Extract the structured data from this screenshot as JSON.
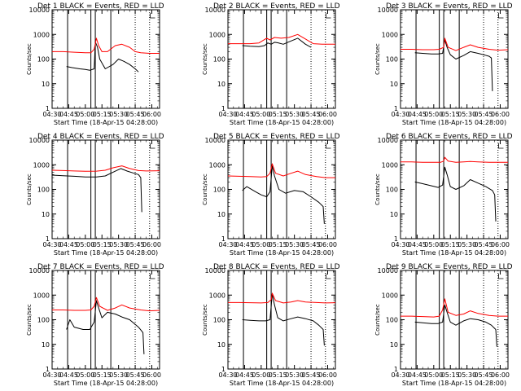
{
  "legend_colors": {
    "events": "#000000",
    "lld": "#ff0000",
    "marker": "#000000"
  },
  "y_ticks": [
    "1",
    "10",
    "100",
    "1000",
    "10000"
  ],
  "x_ticks": [
    "04:30",
    "04:45",
    "05:00",
    "05:15",
    "05:30",
    "05:45",
    "06:00"
  ],
  "chart_data": [
    {
      "type": "line",
      "title": "Det 1 BLACK = Events, RED = LLD",
      "xlabel": "Start Time (18-Apr-15 04:28:00)",
      "ylabel": "Counts/sec",
      "ylim": [
        1,
        10000
      ],
      "xlim": [
        "04:30",
        "06:07"
      ],
      "log_y": true,
      "solid_markers": [
        "04:44",
        "05:05",
        "05:09",
        "05:23"
      ],
      "dotted_markers": [
        "05:45",
        "05:58"
      ],
      "series": [
        {
          "color": "#000000",
          "x": [
            "04:43",
            "04:48",
            "04:55",
            "05:00",
            "05:04",
            "05:08",
            "05:09",
            "05:11",
            "05:13",
            "05:18",
            "05:25",
            "05:30",
            "05:35",
            "05:40",
            "05:45",
            "05:48"
          ],
          "values": [
            50,
            45,
            40,
            38,
            35,
            40,
            500,
            300,
            100,
            40,
            60,
            100,
            80,
            60,
            40,
            30
          ]
        },
        {
          "color": "#ff0000",
          "x": [
            "04:30",
            "04:40",
            "04:50",
            "05:00",
            "05:05",
            "05:08",
            "05:10",
            "05:12",
            "05:15",
            "05:20",
            "05:27",
            "05:33",
            "05:40",
            "05:45",
            "05:50",
            "05:58",
            "06:07"
          ],
          "values": [
            200,
            200,
            190,
            180,
            180,
            250,
            700,
            350,
            200,
            200,
            350,
            400,
            300,
            200,
            180,
            170,
            170
          ]
        }
      ]
    },
    {
      "type": "line",
      "title": "Det 2 BLACK = Events, RED = LLD",
      "xlabel": "Start Time (18-Apr-15 04:28:00)",
      "ylabel": "Counts/sec",
      "ylim": [
        1,
        10000
      ],
      "xlim": [
        "04:30",
        "06:07"
      ],
      "log_y": true,
      "solid_markers": [
        "04:44",
        "05:05",
        "05:09",
        "05:23"
      ],
      "dotted_markers": [
        "05:45",
        "05:58"
      ],
      "series": [
        {
          "color": "#000000",
          "x": [
            "04:43",
            "04:50",
            "04:58",
            "05:03",
            "05:06",
            "05:09",
            "05:12",
            "05:15",
            "05:20",
            "05:25",
            "05:33",
            "05:40",
            "05:45"
          ],
          "values": [
            350,
            330,
            320,
            350,
            450,
            400,
            480,
            460,
            400,
            500,
            700,
            400,
            300
          ]
        },
        {
          "color": "#ff0000",
          "x": [
            "04:30",
            "04:40",
            "04:50",
            "04:58",
            "05:05",
            "05:08",
            "05:12",
            "05:18",
            "05:25",
            "05:33",
            "05:40",
            "05:47",
            "05:55",
            "06:07"
          ],
          "values": [
            420,
            420,
            420,
            450,
            700,
            600,
            750,
            700,
            750,
            1000,
            650,
            420,
            400,
            400
          ]
        }
      ]
    },
    {
      "type": "line",
      "title": "Det 3 BLACK = Events, RED = LLD",
      "xlabel": "Start Time (18-Apr-15 04:28:00)",
      "ylabel": "Counts/sec",
      "ylim": [
        1,
        10000
      ],
      "xlim": [
        "04:30",
        "06:07"
      ],
      "log_y": true,
      "solid_markers": [
        "04:44",
        "05:05",
        "05:09",
        "05:23"
      ],
      "dotted_markers": [
        "05:45",
        "05:58"
      ],
      "series": [
        {
          "color": "#000000",
          "x": [
            "04:43",
            "04:50",
            "04:58",
            "05:04",
            "05:08",
            "05:10",
            "05:12",
            "05:15",
            "05:20",
            "05:27",
            "05:33",
            "05:40",
            "05:45",
            "05:50",
            "05:52",
            "05:53"
          ],
          "values": [
            180,
            170,
            160,
            160,
            170,
            600,
            300,
            150,
            100,
            140,
            200,
            170,
            150,
            130,
            110,
            5
          ]
        },
        {
          "color": "#ff0000",
          "x": [
            "04:30",
            "04:40",
            "04:50",
            "05:00",
            "05:05",
            "05:09",
            "05:10",
            "05:13",
            "05:20",
            "05:27",
            "05:33",
            "05:40",
            "05:50",
            "05:58",
            "06:07"
          ],
          "values": [
            250,
            250,
            240,
            240,
            250,
            300,
            700,
            300,
            220,
            300,
            380,
            300,
            250,
            230,
            240
          ]
        }
      ]
    },
    {
      "type": "line",
      "title": "Det 4 BLACK = Events, RED = LLD",
      "xlabel": "Start Time (18-Apr-15 04:28:00)",
      "ylabel": "Counts/sec",
      "ylim": [
        1,
        10000
      ],
      "xlim": [
        "04:30",
        "06:07"
      ],
      "log_y": true,
      "solid_markers": [
        "04:44",
        "05:05",
        "05:09",
        "05:23"
      ],
      "dotted_markers": [
        "05:45",
        "05:58"
      ],
      "series": [
        {
          "color": "#000000",
          "x": [
            "04:30",
            "04:40",
            "04:50",
            "05:00",
            "05:10",
            "05:18",
            "05:25",
            "05:32",
            "05:38",
            "05:44",
            "05:48",
            "05:50",
            "05:51"
          ],
          "values": [
            380,
            360,
            340,
            320,
            320,
            350,
            500,
            700,
            550,
            450,
            400,
            300,
            12
          ]
        },
        {
          "color": "#ff0000",
          "x": [
            "04:30",
            "04:40",
            "04:50",
            "05:00",
            "05:10",
            "05:18",
            "05:25",
            "05:33",
            "05:40",
            "05:48",
            "05:55",
            "06:07"
          ],
          "values": [
            600,
            580,
            560,
            540,
            550,
            600,
            750,
            900,
            700,
            580,
            560,
            570
          ]
        }
      ]
    },
    {
      "type": "line",
      "title": "Det 5 BLACK = Events, RED = LLD",
      "xlabel": "Start Time (18-Apr-15 04:28:00)",
      "ylabel": "Counts/sec",
      "ylim": [
        1,
        10000
      ],
      "xlim": [
        "04:30",
        "06:07"
      ],
      "log_y": true,
      "solid_markers": [
        "04:44",
        "05:05",
        "05:09",
        "05:23"
      ],
      "dotted_markers": [
        "05:45",
        "05:58"
      ],
      "series": [
        {
          "color": "#000000",
          "x": [
            "04:43",
            "04:47",
            "04:55",
            "05:00",
            "05:05",
            "05:08",
            "05:10",
            "05:12",
            "05:16",
            "05:22",
            "05:30",
            "05:38",
            "05:45",
            "05:52",
            "05:56",
            "05:57"
          ],
          "values": [
            90,
            130,
            80,
            60,
            50,
            80,
            900,
            350,
            100,
            70,
            90,
            80,
            50,
            30,
            20,
            4
          ]
        },
        {
          "color": "#ff0000",
          "x": [
            "04:30",
            "04:40",
            "04:50",
            "05:00",
            "05:05",
            "05:08",
            "05:10",
            "05:13",
            "05:20",
            "05:27",
            "05:33",
            "05:40",
            "05:50",
            "05:58",
            "06:07"
          ],
          "values": [
            350,
            340,
            330,
            320,
            330,
            450,
            1100,
            450,
            350,
            450,
            550,
            400,
            330,
            300,
            300
          ]
        }
      ]
    },
    {
      "type": "line",
      "title": "Det 6 BLACK = Events, RED = LLD",
      "xlabel": "Start Time (18-Apr-15 04:28:00)",
      "ylabel": "Counts/sec",
      "ylim": [
        1,
        10000
      ],
      "xlim": [
        "04:30",
        "06:07"
      ],
      "log_y": true,
      "solid_markers": [
        "04:44",
        "05:05",
        "05:09",
        "05:23"
      ],
      "dotted_markers": [
        "05:45",
        "05:58"
      ],
      "series": [
        {
          "color": "#000000",
          "x": [
            "04:43",
            "04:50",
            "04:58",
            "05:04",
            "05:08",
            "05:10",
            "05:12",
            "05:15",
            "05:20",
            "05:27",
            "05:33",
            "05:40",
            "05:47",
            "05:53",
            "05:55",
            "05:56"
          ],
          "values": [
            200,
            170,
            140,
            120,
            150,
            800,
            400,
            130,
            100,
            140,
            250,
            180,
            130,
            90,
            60,
            5
          ]
        },
        {
          "color": "#ff0000",
          "x": [
            "04:30",
            "04:40",
            "04:50",
            "05:00",
            "05:06",
            "05:09",
            "05:10",
            "05:13",
            "05:20",
            "05:27",
            "05:33",
            "05:40",
            "05:50",
            "05:58",
            "06:07"
          ],
          "values": [
            1300,
            1300,
            1250,
            1250,
            1250,
            1400,
            2000,
            1400,
            1250,
            1300,
            1350,
            1300,
            1250,
            1250,
            1250
          ]
        }
      ]
    },
    {
      "type": "line",
      "title": "Det 7 BLACK = Events, RED = LLD",
      "xlabel": "Start Time (18-Apr-15 04:28:00)",
      "ylabel": "Counts/sec",
      "ylim": [
        1,
        10000
      ],
      "xlim": [
        "04:30",
        "06:07"
      ],
      "log_y": true,
      "solid_markers": [
        "04:44",
        "05:05",
        "05:09",
        "05:23"
      ],
      "dotted_markers": [
        "05:45",
        "05:58"
      ],
      "series": [
        {
          "color": "#000000",
          "x": [
            "04:43",
            "04:46",
            "04:50",
            "04:58",
            "05:04",
            "05:08",
            "05:10",
            "05:12",
            "05:15",
            "05:20",
            "05:27",
            "05:33",
            "05:40",
            "05:48",
            "05:52",
            "05:53"
          ],
          "values": [
            40,
            100,
            50,
            40,
            40,
            80,
            600,
            300,
            120,
            200,
            170,
            130,
            100,
            50,
            30,
            4
          ]
        },
        {
          "color": "#ff0000",
          "x": [
            "04:30",
            "04:40",
            "04:50",
            "05:00",
            "05:05",
            "05:08",
            "05:10",
            "05:13",
            "05:20",
            "05:27",
            "05:33",
            "05:40",
            "05:50",
            "05:58",
            "06:07"
          ],
          "values": [
            250,
            250,
            240,
            240,
            250,
            350,
            800,
            350,
            240,
            300,
            400,
            300,
            250,
            230,
            240
          ]
        }
      ]
    },
    {
      "type": "line",
      "title": "Det 8 BLACK = Events, RED = LLD",
      "xlabel": "Start Time (18-Apr-15 04:28:00)",
      "ylabel": "Counts/sec",
      "ylim": [
        1,
        10000
      ],
      "xlim": [
        "04:30",
        "06:07"
      ],
      "log_y": true,
      "solid_markers": [
        "04:44",
        "05:05",
        "05:09",
        "05:23"
      ],
      "dotted_markers": [
        "05:45",
        "05:58"
      ],
      "series": [
        {
          "color": "#000000",
          "x": [
            "04:43",
            "04:50",
            "04:58",
            "05:04",
            "05:08",
            "05:10",
            "05:12",
            "05:15",
            "05:20",
            "05:27",
            "05:33",
            "05:40",
            "05:47",
            "05:52",
            "05:56",
            "05:57"
          ],
          "values": [
            100,
            95,
            90,
            90,
            100,
            1100,
            400,
            120,
            90,
            110,
            130,
            110,
            90,
            60,
            40,
            9
          ]
        },
        {
          "color": "#ff0000",
          "x": [
            "04:30",
            "04:40",
            "04:50",
            "05:00",
            "05:06",
            "05:09",
            "05:10",
            "05:13",
            "05:20",
            "05:27",
            "05:33",
            "05:40",
            "05:50",
            "05:58",
            "06:07"
          ],
          "values": [
            500,
            500,
            490,
            480,
            500,
            650,
            1200,
            600,
            480,
            520,
            600,
            520,
            500,
            480,
            490
          ]
        }
      ]
    },
    {
      "type": "line",
      "title": "Det 9 BLACK = Events, RED = LLD",
      "xlabel": "Start Time (18-Apr-15 04:28:00)",
      "ylabel": "Counts/sec",
      "ylim": [
        1,
        10000
      ],
      "xlim": [
        "04:30",
        "06:07"
      ],
      "log_y": true,
      "solid_markers": [
        "04:44",
        "05:05",
        "05:09",
        "05:23"
      ],
      "dotted_markers": [
        "05:45",
        "05:58"
      ],
      "series": [
        {
          "color": "#000000",
          "x": [
            "04:43",
            "04:50",
            "04:58",
            "05:04",
            "05:08",
            "05:10",
            "05:12",
            "05:15",
            "05:20",
            "05:27",
            "05:33",
            "05:40",
            "05:47",
            "05:52",
            "05:56",
            "05:57"
          ],
          "values": [
            80,
            75,
            70,
            70,
            80,
            400,
            200,
            80,
            60,
            90,
            110,
            100,
            80,
            60,
            40,
            8
          ]
        },
        {
          "color": "#ff0000",
          "x": [
            "04:30",
            "04:40",
            "04:50",
            "05:00",
            "05:05",
            "05:08",
            "05:10",
            "05:13",
            "05:20",
            "05:27",
            "05:33",
            "05:40",
            "05:50",
            "05:58",
            "06:07"
          ],
          "values": [
            140,
            140,
            135,
            130,
            140,
            250,
            700,
            200,
            150,
            170,
            230,
            180,
            150,
            140,
            140
          ]
        }
      ]
    }
  ]
}
